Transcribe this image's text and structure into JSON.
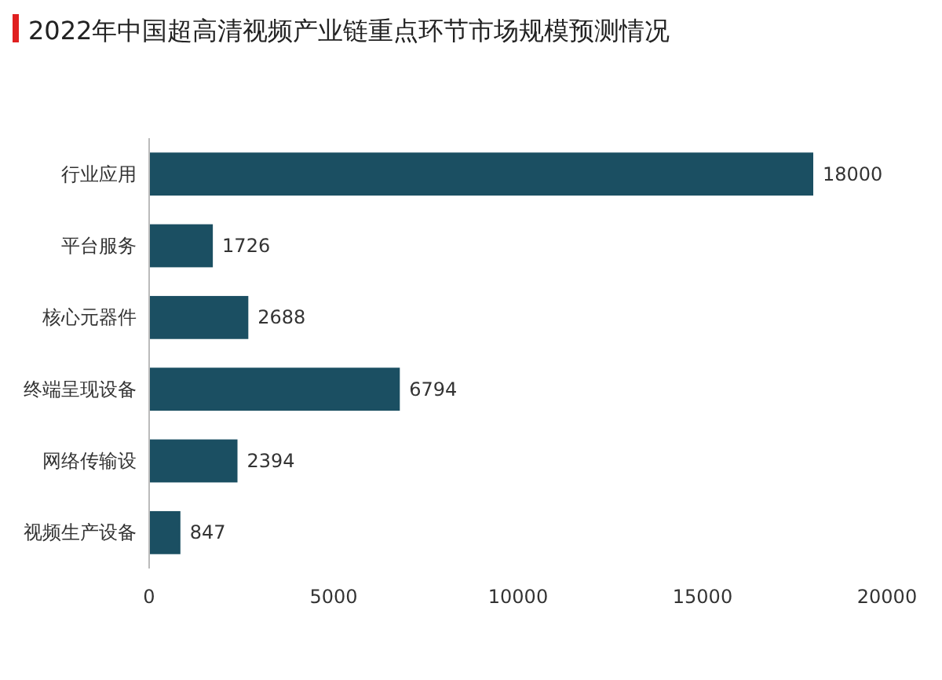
{
  "chart_data": {
    "type": "bar",
    "orientation": "horizontal",
    "title": "2022年中国超高清视频产业链重点环节市场规模预测情况",
    "categories": [
      "行业应用",
      "平台服务",
      "核心元器件",
      "终端呈现设备",
      "网络传输设",
      "视频生产设备"
    ],
    "values": [
      18000,
      1726,
      2688,
      6794,
      2394,
      847
    ],
    "color": "#1b4f62",
    "data_labels": true,
    "xlim": [
      0,
      20000
    ],
    "xticks": [
      0,
      5000,
      10000,
      15000,
      20000
    ]
  }
}
